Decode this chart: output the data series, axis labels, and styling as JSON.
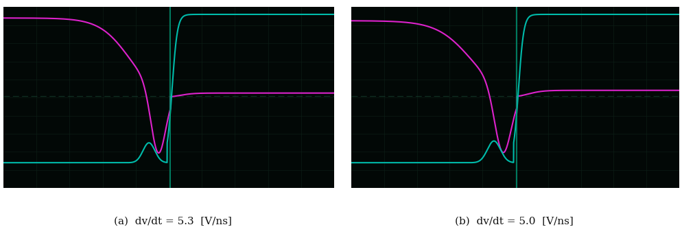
{
  "fig_width": 9.95,
  "fig_height": 3.47,
  "bg_color": "#ffffff",
  "panel_bg": "#020806",
  "magenta_color": "#dd22cc",
  "cyan_color": "#00bbaa",
  "grid_color": "#0d2218",
  "grid_line_alpha": 0.8,
  "trigger_color": "#009977",
  "ref_line_color": "#1a4433",
  "caption_a": "(a)  dv/dt = 5.3  [V/ns]",
  "caption_b": "(b)  dv/dt = 5.0  [V/ns]",
  "caption_fontsize": 11,
  "caption_color": "#111111"
}
